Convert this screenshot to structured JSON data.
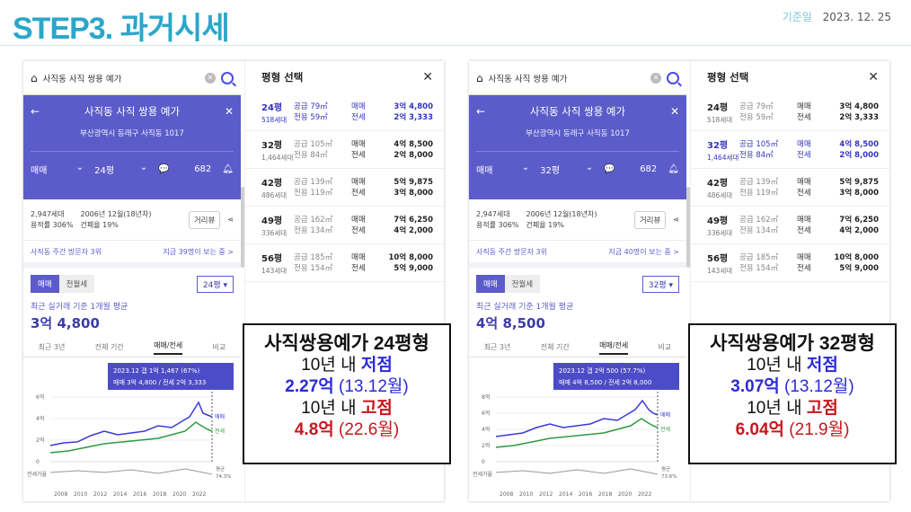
{
  "header": {
    "title": "STEP3. 과거시세",
    "date_label": "기준일",
    "date": "2023. 12. 25"
  },
  "shots": [
    {
      "search_text": "사직동 사직 쌍용 예가",
      "app_title": "사직동 사직 쌍용 예가",
      "address": "부산광역시 동래구 사직동 1017",
      "filter_type": "매매",
      "filter_size": "24평",
      "comments": "682",
      "households": "2,947세대",
      "floor_ratio": "용적률 306%",
      "built": "2006년 12월(18년차)",
      "coverage": "건폐율 19%",
      "distance_button": "거리뷰",
      "visit_label": "사직동 주간 방문자 3위",
      "visit_right": "지금 39명이 보는 중 >",
      "tab_sale": "매매",
      "tab_rent": "전월세",
      "size_select": "24평",
      "avg_note": "최근 실거래 기준 1개월 평균",
      "avg_price": "3억 4,800",
      "period_tabs": [
        "최근 3년",
        "전체 기간",
        "매매/전세",
        "비교"
      ],
      "tooltip_line1": "2023.12  갭 1억 1,467 (67%)",
      "tooltip_line2": "매매 3억 4,800 / 전세 2억 3,333",
      "y_ticks": [
        "6억",
        "4억",
        "2억",
        "0"
      ],
      "x_ticks": [
        "2008",
        "2010",
        "2012",
        "2014",
        "2016",
        "2018",
        "2020",
        "2022"
      ],
      "legend_sale": "매매",
      "legend_rent": "전세",
      "ratio_label": "전세가율",
      "ratio_right_1": "평균",
      "ratio_right_2": "74.3%",
      "picker_title": "평형 선택",
      "rows": [
        {
          "pyeong": "24평",
          "hh": "518세대",
          "supply": "공급 79㎡",
          "exclusive": "전용 59㎡",
          "t1": "매매",
          "t2": "전세",
          "p1": "3억 4,800",
          "p2": "2억 3,333"
        },
        {
          "pyeong": "32평",
          "hh": "1,464세대",
          "supply": "공급 105㎡",
          "exclusive": "전용 84㎡",
          "t1": "매매",
          "t2": "전세",
          "p1": "4억 8,500",
          "p2": "2억 8,000"
        },
        {
          "pyeong": "42평",
          "hh": "486세대",
          "supply": "공급 139㎡",
          "exclusive": "전용 119㎡",
          "t1": "매매",
          "t2": "전세",
          "p1": "5억 9,875",
          "p2": "3억 8,000"
        },
        {
          "pyeong": "49평",
          "hh": "336세대",
          "supply": "공급 162㎡",
          "exclusive": "전용 134㎡",
          "t1": "매매",
          "t2": "전세",
          "p1": "7억 6,250",
          "p2": "4억 2,000"
        },
        {
          "pyeong": "56평",
          "hh": "143세대",
          "supply": "공급 185㎡",
          "exclusive": "전용 154㎡",
          "t1": "매매",
          "t2": "전세",
          "p1": "10억 8,000",
          "p2": "5억 9,000"
        }
      ],
      "summary": {
        "title": "사직쌍용예가 24평형",
        "low_pre": "10년 내 ",
        "low_word": "저점",
        "low_value": "2.27억",
        "low_date": " (13.12월)",
        "high_pre": "10년 내 ",
        "high_word": "고점",
        "high_value": "4.8억",
        "high_date": " (22.6월)"
      }
    },
    {
      "search_text": "사직동 사직 쌍용 예가",
      "app_title": "사직동 사직 쌍용 예가",
      "address": "부산광역시 동래구 사직동 1017",
      "filter_type": "매매",
      "filter_size": "32평",
      "comments": "682",
      "households": "2,947세대",
      "floor_ratio": "용적률 306%",
      "built": "2006년 12월(18년차)",
      "coverage": "건폐율 19%",
      "distance_button": "거리뷰",
      "visit_label": "사직동 주간 방문자 3위",
      "visit_right": "지금 40명이 보는 중 >",
      "tab_sale": "매매",
      "tab_rent": "전월세",
      "size_select": "32평",
      "avg_note": "최근 실거래 기준 1개월 평균",
      "avg_price": "4억 8,500",
      "period_tabs": [
        "최근 3년",
        "전체 기간",
        "매매/전세",
        "비교"
      ],
      "tooltip_line1": "2023.12  갭 2억 500 (57.7%)",
      "tooltip_line2": "매매 4억 8,500 / 전세 2억 8,000",
      "y_ticks": [
        "8억",
        "6억",
        "4억",
        "2억",
        "0"
      ],
      "x_ticks": [
        "2008",
        "2010",
        "2012",
        "2014",
        "2016",
        "2018",
        "2020",
        "2022"
      ],
      "legend_sale": "매매",
      "legend_rent": "전세",
      "ratio_label": "전세가율",
      "ratio_right_1": "평균",
      "ratio_right_2": "73.6%",
      "picker_title": "평형 선택",
      "rows": [
        {
          "pyeong": "24평",
          "hh": "518세대",
          "supply": "공급 79㎡",
          "exclusive": "전용 59㎡",
          "t1": "매매",
          "t2": "전세",
          "p1": "3억 4,800",
          "p2": "2억 3,333"
        },
        {
          "pyeong": "32평",
          "hh": "1,464세대",
          "supply": "공급 105㎡",
          "exclusive": "전용 84㎡",
          "t1": "매매",
          "t2": "전세",
          "p1": "4억 8,500",
          "p2": "2억 8,000"
        },
        {
          "pyeong": "42평",
          "hh": "486세대",
          "supply": "공급 139㎡",
          "exclusive": "전용 119㎡",
          "t1": "매매",
          "t2": "전세",
          "p1": "5억 9,875",
          "p2": "3억 8,000"
        },
        {
          "pyeong": "49평",
          "hh": "336세대",
          "supply": "공급 162㎡",
          "exclusive": "전용 134㎡",
          "t1": "매매",
          "t2": "전세",
          "p1": "7억 6,250",
          "p2": "4억 2,000"
        },
        {
          "pyeong": "56평",
          "hh": "143세대",
          "supply": "공급 185㎡",
          "exclusive": "전용 154㎡",
          "t1": "매매",
          "t2": "전세",
          "p1": "10억 8,000",
          "p2": "5억 9,000"
        }
      ],
      "summary": {
        "title": "사직쌍용예가 32평형",
        "low_pre": "10년 내 ",
        "low_word": "저점",
        "low_value": "3.07억",
        "low_date": " (13.12월)",
        "high_pre": "10년 내 ",
        "high_word": "고점",
        "high_value": "6.04억",
        "high_date": " (21.9월)"
      }
    }
  ],
  "colors": {
    "title": "#2aa7c9",
    "accent": "#5b5cc9",
    "sale_line": "#3a3ad8",
    "rent_line": "#2e9a3e",
    "low": "#2b2bd6",
    "high": "#c8161d"
  }
}
